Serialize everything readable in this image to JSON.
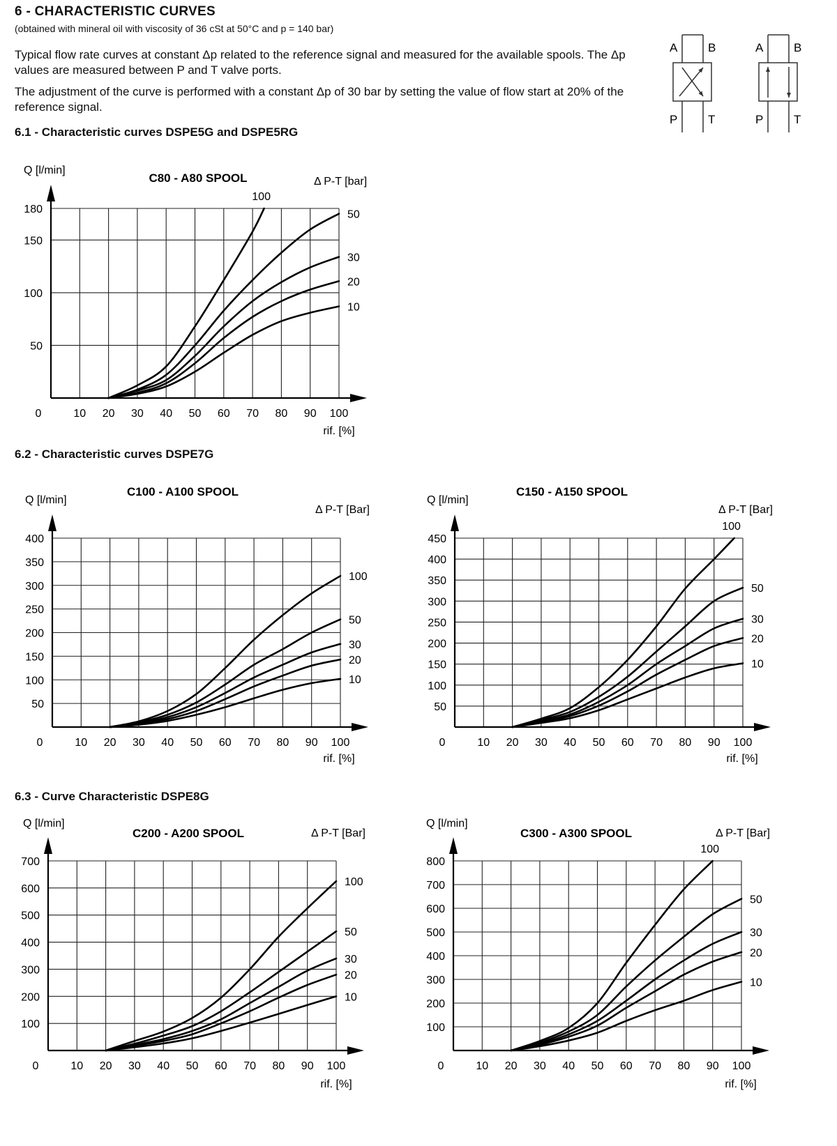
{
  "header": {
    "title": "6 - CHARACTERISTIC CURVES",
    "subtitle": "(obtained with mineral oil with viscosity of 36 cSt at 50°C and p = 140 bar)",
    "para1": "Typical flow rate curves at constant Δp related to the reference signal and measured for the available spools. The Δp values are measured between P and T valve ports.",
    "para2": "The adjustment of the curve is performed with a constant Δp of 30 bar by setting the value of flow start at 20% of the reference signal."
  },
  "symbol": {
    "port_a": "A",
    "port_b": "B",
    "port_p": "P",
    "port_t": "T"
  },
  "sections": {
    "s61": "6.1 - Characteristic curves DSPE5G and DSPE5RG",
    "s62": "6.2 - Characteristic curves DSPE7G",
    "s63": "6.3 - Curve Characteristic DSPE8G"
  },
  "chart_data": [
    {
      "type": "line",
      "title": "C80 - A80 SPOOL",
      "ylabel": "Q [l/min]",
      "xlabel": "rif. [%]",
      "legend_title": "Δ P-T [bar]",
      "xlim": [
        0,
        100
      ],
      "ylim": [
        0,
        180
      ],
      "yticks": [
        180,
        150,
        100,
        50
      ],
      "xticks": [
        10,
        20,
        30,
        40,
        50,
        60,
        70,
        80,
        90,
        100
      ],
      "zero_label": "0",
      "x": [
        20,
        30,
        40,
        50,
        60,
        70,
        80,
        90,
        100
      ],
      "series": [
        {
          "name": "100",
          "values": [
            0,
            12,
            30,
            68,
            112,
            158,
            null,
            null,
            null
          ],
          "end": [
            74,
            180
          ]
        },
        {
          "name": "50",
          "values": [
            0,
            8,
            22,
            50,
            83,
            112,
            138,
            160,
            175
          ]
        },
        {
          "name": "30",
          "values": [
            0,
            7,
            17,
            40,
            68,
            92,
            110,
            124,
            134
          ]
        },
        {
          "name": "20",
          "values": [
            0,
            5,
            14,
            33,
            57,
            77,
            92,
            103,
            111
          ]
        },
        {
          "name": "10",
          "values": [
            0,
            4,
            11,
            25,
            43,
            60,
            73,
            81,
            87
          ]
        }
      ]
    },
    {
      "type": "line",
      "title": "C100 - A100 SPOOL",
      "ylabel": "Q [l/min]",
      "xlabel": "rif. [%]",
      "legend_title": "Δ P-T [Bar]",
      "xlim": [
        0,
        100
      ],
      "ylim": [
        0,
        400
      ],
      "yticks": [
        400,
        350,
        300,
        250,
        200,
        150,
        100,
        50
      ],
      "xticks": [
        10,
        20,
        30,
        40,
        50,
        60,
        70,
        80,
        90,
        100
      ],
      "zero_label": "0",
      "x": [
        20,
        30,
        40,
        50,
        60,
        70,
        80,
        90,
        100
      ],
      "series": [
        {
          "name": "100",
          "values": [
            0,
            12,
            34,
            70,
            125,
            185,
            237,
            283,
            320
          ]
        },
        {
          "name": "50",
          "values": [
            0,
            10,
            26,
            52,
            90,
            132,
            165,
            200,
            228
          ]
        },
        {
          "name": "30",
          "values": [
            0,
            8,
            21,
            42,
            72,
            105,
            132,
            158,
            176
          ]
        },
        {
          "name": "20",
          "values": [
            0,
            7,
            17,
            34,
            59,
            86,
            109,
            130,
            143
          ]
        },
        {
          "name": "10",
          "values": [
            0,
            5,
            13,
            26,
            42,
            61,
            79,
            93,
            102
          ]
        }
      ]
    },
    {
      "type": "line",
      "title": "C150 - A150 SPOOL",
      "ylabel": "Q [l/min]",
      "xlabel": "rif. [%]",
      "legend_title": "Δ P-T [Bar]",
      "xlim": [
        0,
        100
      ],
      "ylim": [
        0,
        450
      ],
      "yticks": [
        450,
        400,
        350,
        300,
        250,
        200,
        150,
        100,
        50
      ],
      "xticks": [
        10,
        20,
        30,
        40,
        50,
        60,
        70,
        80,
        90,
        100
      ],
      "zero_label": "0",
      "x": [
        20,
        30,
        40,
        50,
        60,
        70,
        80,
        90,
        100
      ],
      "series": [
        {
          "name": "100",
          "values": [
            0,
            20,
            45,
            95,
            160,
            240,
            330,
            400,
            null
          ],
          "end": [
            97,
            450
          ]
        },
        {
          "name": "50",
          "values": [
            0,
            17,
            36,
            72,
            120,
            180,
            240,
            300,
            332
          ]
        },
        {
          "name": "30",
          "values": [
            0,
            14,
            30,
            60,
            100,
            150,
            193,
            235,
            258
          ]
        },
        {
          "name": "20",
          "values": [
            0,
            12,
            26,
            51,
            85,
            125,
            160,
            193,
            212
          ]
        },
        {
          "name": "10",
          "values": [
            0,
            10,
            21,
            40,
            66,
            92,
            118,
            140,
            152
          ]
        }
      ]
    },
    {
      "type": "line",
      "title": "C200 - A200 SPOOL",
      "ylabel": "Q [l/min]",
      "xlabel": "rif. [%]",
      "legend_title": "Δ P-T [Bar]",
      "xlim": [
        0,
        100
      ],
      "ylim": [
        0,
        700
      ],
      "yticks": [
        700,
        600,
        500,
        400,
        300,
        200,
        100
      ],
      "xticks": [
        10,
        20,
        30,
        40,
        50,
        60,
        70,
        80,
        90,
        100
      ],
      "zero_label": "0",
      "x": [
        20,
        30,
        40,
        50,
        60,
        70,
        80,
        90,
        100
      ],
      "series": [
        {
          "name": "100",
          "values": [
            0,
            35,
            70,
            120,
            195,
            300,
            420,
            525,
            625
          ]
        },
        {
          "name": "50",
          "values": [
            0,
            25,
            55,
            90,
            145,
            215,
            290,
            365,
            440
          ]
        },
        {
          "name": "30",
          "values": [
            0,
            20,
            42,
            72,
            115,
            175,
            235,
            295,
            340
          ]
        },
        {
          "name": "20",
          "values": [
            0,
            17,
            35,
            60,
            100,
            145,
            195,
            242,
            280
          ]
        },
        {
          "name": "10",
          "values": [
            0,
            12,
            26,
            45,
            72,
            103,
            135,
            168,
            200
          ]
        }
      ]
    },
    {
      "type": "line",
      "title": "C300 - A300 SPOOL",
      "ylabel": "Q [l/min]",
      "xlabel": "rif. [%]",
      "legend_title": "Δ P-T [Bar]",
      "xlim": [
        0,
        100
      ],
      "ylim": [
        0,
        800
      ],
      "yticks": [
        800,
        700,
        600,
        500,
        400,
        300,
        200,
        100
      ],
      "xticks": [
        10,
        20,
        30,
        40,
        50,
        60,
        70,
        80,
        90,
        100
      ],
      "zero_label": "0",
      "x": [
        20,
        30,
        40,
        50,
        60,
        70,
        80,
        90,
        100
      ],
      "series": [
        {
          "name": "100",
          "values": [
            0,
            40,
            95,
            200,
            370,
            530,
            680,
            800,
            null
          ]
        },
        {
          "name": "50",
          "values": [
            0,
            33,
            80,
            150,
            270,
            380,
            480,
            575,
            640
          ]
        },
        {
          "name": "30",
          "values": [
            0,
            28,
            68,
            125,
            210,
            300,
            380,
            450,
            500
          ]
        },
        {
          "name": "20",
          "values": [
            0,
            24,
            58,
            105,
            180,
            250,
            320,
            375,
            415
          ]
        },
        {
          "name": "10",
          "values": [
            0,
            18,
            42,
            75,
            125,
            170,
            210,
            255,
            290
          ]
        }
      ]
    }
  ]
}
